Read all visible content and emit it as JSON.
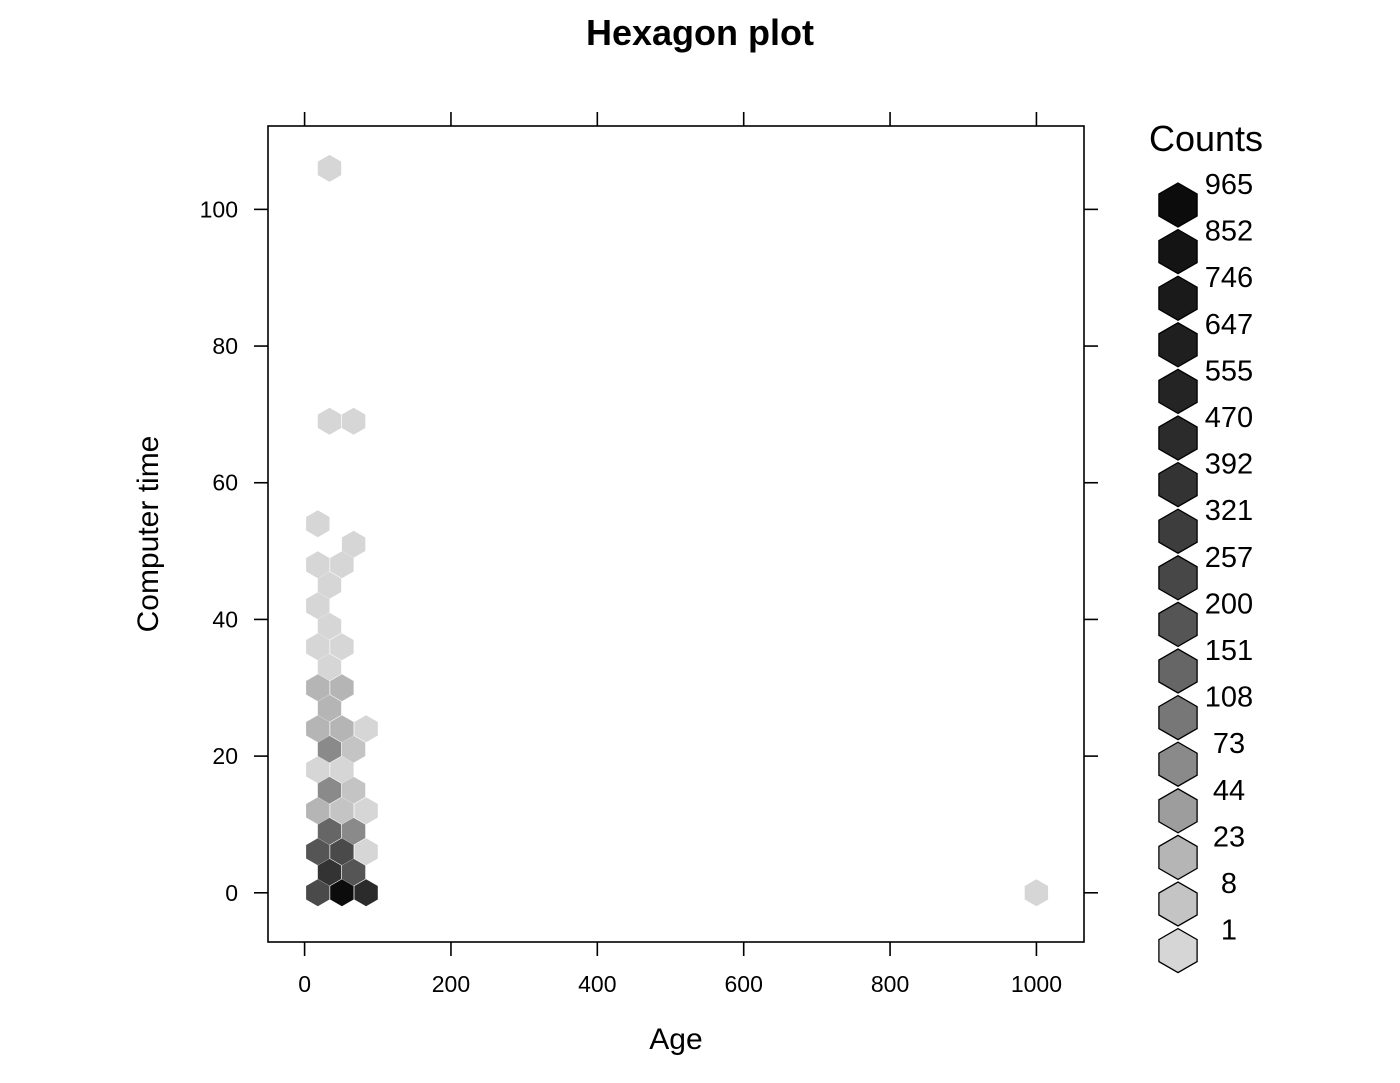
{
  "chart_data": {
    "type": "hexbin",
    "title": "Hexagon plot",
    "xlabel": "Age",
    "ylabel": "Computer time",
    "xlim": [
      -50,
      1065
    ],
    "ylim": [
      -7.2,
      112.2
    ],
    "xticks": [
      0,
      200,
      400,
      600,
      800,
      1000
    ],
    "yticks": [
      0,
      20,
      40,
      60,
      80,
      100
    ],
    "legend": {
      "title": "Counts",
      "position": "right",
      "labels": [
        "965",
        "852",
        "746",
        "647",
        "555",
        "470",
        "392",
        "321",
        "257",
        "200",
        "151",
        "108",
        "73",
        "44",
        "23",
        "8",
        "1"
      ],
      "colors": [
        "#0c0c0c",
        "#141414",
        "#1a1a1a",
        "#1f1f1f",
        "#242424",
        "#2b2b2b",
        "#333333",
        "#3d3d3d",
        "#474747",
        "#555555",
        "#666666",
        "#777777",
        "#8a8a8a",
        "#9d9d9d",
        "#b5b5b5",
        "#c4c4c4",
        "#d6d6d6"
      ]
    },
    "bins": [
      {
        "x": 18,
        "y": 0,
        "color": "#4a4a4a"
      },
      {
        "x": 51,
        "y": 0,
        "color": "#0c0c0c"
      },
      {
        "x": 84,
        "y": 0,
        "color": "#2b2b2b"
      },
      {
        "x": 34,
        "y": 3,
        "color": "#333333"
      },
      {
        "x": 67,
        "y": 3,
        "color": "#555555"
      },
      {
        "x": 18,
        "y": 6,
        "color": "#555555"
      },
      {
        "x": 51,
        "y": 6,
        "color": "#4a4a4a"
      },
      {
        "x": 84,
        "y": 6,
        "color": "#d6d6d6"
      },
      {
        "x": 34,
        "y": 9,
        "color": "#666666"
      },
      {
        "x": 67,
        "y": 9,
        "color": "#8a8a8a"
      },
      {
        "x": 18,
        "y": 12,
        "color": "#b5b5b5"
      },
      {
        "x": 51,
        "y": 12,
        "color": "#c4c4c4"
      },
      {
        "x": 84,
        "y": 12,
        "color": "#d6d6d6"
      },
      {
        "x": 34,
        "y": 15,
        "color": "#8a8a8a"
      },
      {
        "x": 67,
        "y": 15,
        "color": "#c4c4c4"
      },
      {
        "x": 18,
        "y": 18,
        "color": "#d6d6d6"
      },
      {
        "x": 51,
        "y": 18,
        "color": "#d6d6d6"
      },
      {
        "x": 34,
        "y": 21,
        "color": "#8a8a8a"
      },
      {
        "x": 67,
        "y": 21,
        "color": "#c4c4c4"
      },
      {
        "x": 18,
        "y": 24,
        "color": "#b5b5b5"
      },
      {
        "x": 51,
        "y": 24,
        "color": "#b5b5b5"
      },
      {
        "x": 84,
        "y": 24,
        "color": "#d6d6d6"
      },
      {
        "x": 34,
        "y": 27,
        "color": "#b5b5b5"
      },
      {
        "x": 18,
        "y": 30,
        "color": "#b5b5b5"
      },
      {
        "x": 51,
        "y": 30,
        "color": "#b5b5b5"
      },
      {
        "x": 34,
        "y": 33,
        "color": "#d6d6d6"
      },
      {
        "x": 18,
        "y": 36,
        "color": "#d6d6d6"
      },
      {
        "x": 51,
        "y": 36,
        "color": "#d6d6d6"
      },
      {
        "x": 34,
        "y": 39,
        "color": "#d6d6d6"
      },
      {
        "x": 18,
        "y": 42,
        "color": "#d6d6d6"
      },
      {
        "x": 34,
        "y": 45,
        "color": "#d6d6d6"
      },
      {
        "x": 18,
        "y": 48,
        "color": "#d6d6d6"
      },
      {
        "x": 51,
        "y": 48,
        "color": "#d6d6d6"
      },
      {
        "x": 67,
        "y": 51,
        "color": "#d6d6d6"
      },
      {
        "x": 18,
        "y": 54,
        "color": "#d6d6d6"
      },
      {
        "x": 34,
        "y": 69,
        "color": "#d6d6d6"
      },
      {
        "x": 67,
        "y": 69,
        "color": "#d6d6d6"
      },
      {
        "x": 34,
        "y": 106,
        "color": "#d6d6d6"
      },
      {
        "x": 1000,
        "y": 0,
        "color": "#d6d6d6"
      }
    ]
  }
}
